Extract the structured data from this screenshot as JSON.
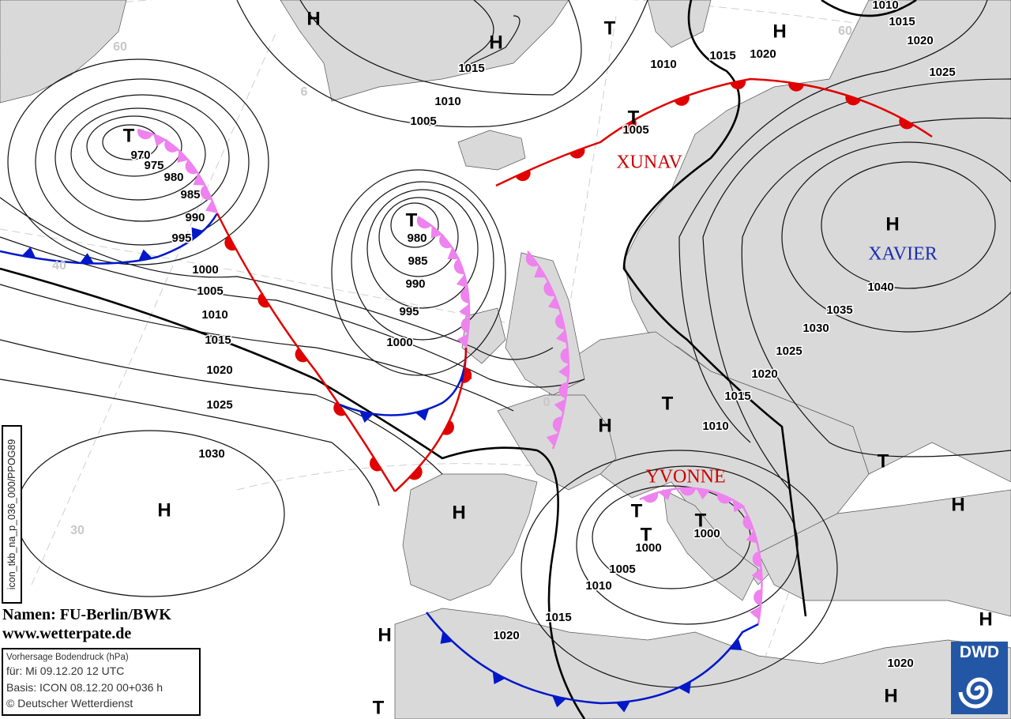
{
  "map": {
    "pressure_centers": [
      "H",
      "H",
      "T",
      "H",
      "H",
      "T",
      "T",
      "T",
      "H",
      "T",
      "H",
      "H",
      "T",
      "T",
      "T",
      "T",
      "H",
      "H",
      "H",
      "T",
      "H"
    ],
    "system_names": {
      "xunav": "XUNAV",
      "xavier": "XAVIER",
      "yvonne": "YVONNE"
    },
    "isobar_labels": [
      "1015",
      "1010",
      "1005",
      "1010",
      "1015",
      "1020",
      "1010",
      "1015",
      "1020",
      "1025",
      "1005",
      "970",
      "975",
      "980",
      "985",
      "990",
      "995",
      "1000",
      "1005",
      "1010",
      "1015",
      "1020",
      "1025",
      "1030",
      "980",
      "985",
      "990",
      "995",
      "1000",
      "1040",
      "1035",
      "1030",
      "1025",
      "1020",
      "1015",
      "1010",
      "1000",
      "1000",
      "1005",
      "1010",
      "1015",
      "1020",
      "1020"
    ],
    "grid_labels": [
      "60",
      "6",
      "40",
      "0",
      "30",
      "60"
    ],
    "colors": {
      "land": "#d9d9d9",
      "sea": "#ffffff",
      "warm_front": "#e00000",
      "cold_front": "#0018c8",
      "occlusion": "#ee82ee",
      "name_red": "#cc0000",
      "name_blue": "#1a2fb0",
      "dwd_blue": "#2357a6"
    }
  },
  "side_label": "icon_tkb_na_p_036_000/PPOG89",
  "credits": {
    "names": "Namen: FU-Berlin/BWK",
    "url": "www.wetterpate.de"
  },
  "info_box": {
    "title": "Vorhersage Bodendruck (hPa)",
    "valid": "für:  Mi 09.12.20  12 UTC",
    "basis": "Basis: ICON  08.12.20 00+036 h",
    "copyright": "© Deutscher Wetterdienst"
  },
  "logo": {
    "text": "DWD"
  }
}
